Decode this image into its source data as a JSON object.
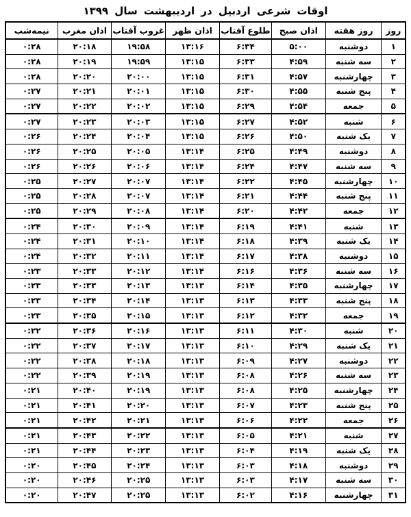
{
  "title": "اوقات شرعی اردبیل در  اردیبهشت  سال ۱۳۹۹",
  "table": {
    "headers": {
      "day": "روز",
      "weekday": "روز هفته",
      "fajr_azan": "اذان صبح",
      "sunrise": "طلوع آفتاب",
      "dhuhr_azan": "اذان ظهر",
      "sunset": "غروب آفتاب",
      "maghrib_azan": "اذان مغرب",
      "midnight": "نیمه‌شب"
    },
    "friday_label": "جمعه",
    "rows": [
      [
        "۱",
        "دوشنبه",
        "۵:۰۰",
        "۶:۳۴",
        "۱۳:۱۶",
        "۱۹:۵۸",
        "۲۰:۱۸",
        "۰:۲۸"
      ],
      [
        "۲",
        "سه شنبه",
        "۴:۵۹",
        "۶:۳۳",
        "۱۳:۱۵",
        "۱۹:۵۹",
        "۲۰:۱۹",
        "۰:۲۸"
      ],
      [
        "۳",
        "چهارشنبه",
        "۴:۵۷",
        "۶:۳۱",
        "۱۳:۱۵",
        "۲۰:۰۰",
        "۲۰:۲۰",
        "۰:۲۸"
      ],
      [
        "۴",
        "پنج شنبه",
        "۴:۵۵",
        "۶:۳۰",
        "۱۳:۱۵",
        "۲۰:۰۱",
        "۲۰:۲۱",
        "۰:۲۷"
      ],
      [
        "۵",
        "جمعه",
        "۴:۵۴",
        "۶:۲۹",
        "۱۳:۱۵",
        "۲۰:۰۲",
        "۲۰:۲۲",
        "۰:۲۷"
      ],
      [
        "۶",
        "شنبه",
        "۴:۵۲",
        "۶:۲۷",
        "۱۳:۱۵",
        "۲۰:۰۳",
        "۲۰:۲۳",
        "۰:۲۷"
      ],
      [
        "۷",
        "یک شنبه",
        "۴:۵۰",
        "۶:۲۶",
        "۱۳:۱۵",
        "۲۰:۰۴",
        "۲۰:۲۴",
        "۰:۲۶"
      ],
      [
        "۸",
        "دوشنبه",
        "۴:۴۹",
        "۶:۲۵",
        "۱۳:۱۴",
        "۲۰:۰۵",
        "۲۰:۲۵",
        "۰:۲۶"
      ],
      [
        "۹",
        "سه شنبه",
        "۴:۴۷",
        "۶:۲۴",
        "۱۳:۱۴",
        "۲۰:۰۶",
        "۲۰:۲۶",
        "۰:۲۶"
      ],
      [
        "۱۰",
        "چهارشنبه",
        "۴:۴۵",
        "۶:۲۲",
        "۱۳:۱۴",
        "۲۰:۰۷",
        "۲۰:۲۷",
        "۰:۲۵"
      ],
      [
        "۱۱",
        "پنج شنبه",
        "۴:۴۴",
        "۶:۲۱",
        "۱۳:۱۴",
        "۲۰:۰۷",
        "۲۰:۲۸",
        "۰:۲۵"
      ],
      [
        "۱۲",
        "جمعه",
        "۴:۴۲",
        "۶:۲۰",
        "۱۳:۱۴",
        "۲۰:۰۸",
        "۲۰:۲۹",
        "۰:۲۵"
      ],
      [
        "۱۳",
        "شنبه",
        "۴:۴۱",
        "۶:۱۹",
        "۱۳:۱۴",
        "۲۰:۰۹",
        "۲۰:۳۰",
        "۰:۲۴"
      ],
      [
        "۱۴",
        "یک شنبه",
        "۴:۳۹",
        "۶:۱۸",
        "۱۳:۱۴",
        "۲۰:۱۰",
        "۲۰:۳۱",
        "۰:۲۴"
      ],
      [
        "۱۵",
        "دوشنبه",
        "۴:۳۸",
        "۶:۱۷",
        "۱۳:۱۴",
        "۲۰:۱۱",
        "۲۰:۳۲",
        "۰:۲۴"
      ],
      [
        "۱۶",
        "سه شنبه",
        "۴:۳۶",
        "۶:۱۶",
        "۱۳:۱۴",
        "۲۰:۱۲",
        "۲۰:۳۳",
        "۰:۲۳"
      ],
      [
        "۱۷",
        "چهارشنبه",
        "۴:۳۵",
        "۶:۱۴",
        "۱۳:۱۳",
        "۲۰:۱۳",
        "۲۰:۳۳",
        "۰:۲۳"
      ],
      [
        "۱۸",
        "پنج شنبه",
        "۴:۳۳",
        "۶:۱۳",
        "۱۳:۱۳",
        "۲۰:۱۴",
        "۲۰:۳۴",
        "۰:۲۳"
      ],
      [
        "۱۹",
        "جمعه",
        "۴:۳۲",
        "۶:۱۲",
        "۱۳:۱۳",
        "۲۰:۱۵",
        "۲۰:۳۵",
        "۰:۲۳"
      ],
      [
        "۲۰",
        "شنبه",
        "۴:۳۰",
        "۶:۱۱",
        "۱۳:۱۳",
        "۲۰:۱۶",
        "۲۰:۳۶",
        "۰:۲۲"
      ],
      [
        "۲۱",
        "یک شنبه",
        "۴:۲۹",
        "۶:۱۰",
        "۱۳:۱۳",
        "۲۰:۱۷",
        "۲۰:۳۷",
        "۰:۲۲"
      ],
      [
        "۲۲",
        "دوشنبه",
        "۴:۲۷",
        "۶:۰۹",
        "۱۳:۱۳",
        "۲۰:۱۸",
        "۲۰:۳۸",
        "۰:۲۲"
      ],
      [
        "۲۳",
        "سه شنبه",
        "۴:۲۶",
        "۶:۰۸",
        "۱۳:۱۳",
        "۲۰:۱۹",
        "۲۰:۳۹",
        "۰:۲۲"
      ],
      [
        "۲۴",
        "چهارشنبه",
        "۴:۲۵",
        "۶:۰۸",
        "۱۳:۱۳",
        "۲۰:۱۹",
        "۲۰:۴۰",
        "۰:۲۱"
      ],
      [
        "۲۵",
        "پنج شنبه",
        "۴:۲۳",
        "۶:۰۷",
        "۱۳:۱۳",
        "۲۰:۲۰",
        "۲۰:۴۱",
        "۰:۲۱"
      ],
      [
        "۲۶",
        "جمعه",
        "۴:۲۲",
        "۶:۰۶",
        "۱۳:۱۳",
        "۲۰:۲۱",
        "۲۰:۴۲",
        "۰:۲۱"
      ],
      [
        "۲۷",
        "شنبه",
        "۴:۲۱",
        "۶:۰۵",
        "۱۳:۱۳",
        "۲۰:۲۲",
        "۲۰:۴۳",
        "۰:۲۱"
      ],
      [
        "۲۸",
        "یک شنبه",
        "۴:۱۹",
        "۶:۰۴",
        "۱۳:۱۳",
        "۲۰:۲۳",
        "۲۰:۴۴",
        "۰:۲۱"
      ],
      [
        "۲۹",
        "دوشنبه",
        "۴:۱۸",
        "۶:۰۳",
        "۱۳:۱۳",
        "۲۰:۲۴",
        "۲۰:۴۵",
        "۰:۲۰"
      ],
      [
        "۳۰",
        "سه شنبه",
        "۴:۱۷",
        "۶:۰۳",
        "۱۳:۱۳",
        "۲۰:۲۵",
        "۲۰:۴۶",
        "۰:۲۰"
      ],
      [
        "۳۱",
        "چهارشنبه",
        "۴:۱۶",
        "۶:۰۲",
        "۱۳:۱۳",
        "۲۰:۲۵",
        "۲۰:۴۷",
        "۰:۲۰"
      ]
    ],
    "colors": {
      "text": "#000000",
      "border": "#000000",
      "background": "#ffffff"
    }
  }
}
